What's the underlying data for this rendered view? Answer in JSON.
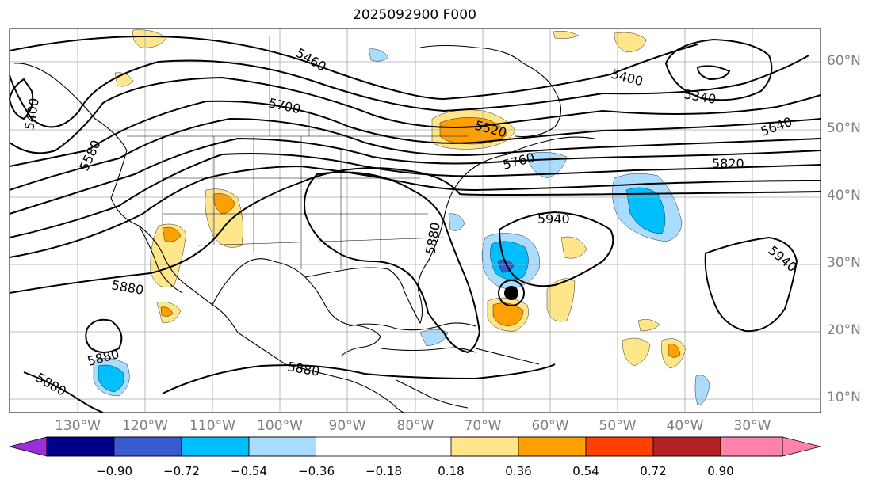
{
  "title": "2025092900 F000",
  "lat_labels": [
    "60°N",
    "50°N",
    "40°N",
    "30°N",
    "20°N",
    "10°N"
  ],
  "lon_labels": [
    "130°W",
    "120°W",
    "110°W",
    "100°W",
    "90°W",
    "80°W",
    "70°W",
    "60°W",
    "50°W",
    "40°W",
    "30°W"
  ],
  "contour_labels": [
    "5460",
    "5400",
    "5580",
    "5700",
    "5520",
    "5400",
    "5340",
    "5640",
    "5760",
    "5820",
    "5940",
    "5880",
    "5940",
    "5880",
    "5880",
    "5880",
    "5880"
  ],
  "colorbar": {
    "colors": [
      "#9b30d8",
      "#00008b",
      "#3a5bd0",
      "#00bfff",
      "#aadcff",
      "#ffffff",
      "#ffe68a",
      "#ffa000",
      "#ff4000",
      "#b22222",
      "#ff82ab"
    ],
    "ticks": [
      "−0.90",
      "−0.72",
      "−0.54",
      "−0.36",
      "−0.18",
      "0.18",
      "0.36",
      "0.54",
      "0.72",
      "0.90"
    ]
  }
}
